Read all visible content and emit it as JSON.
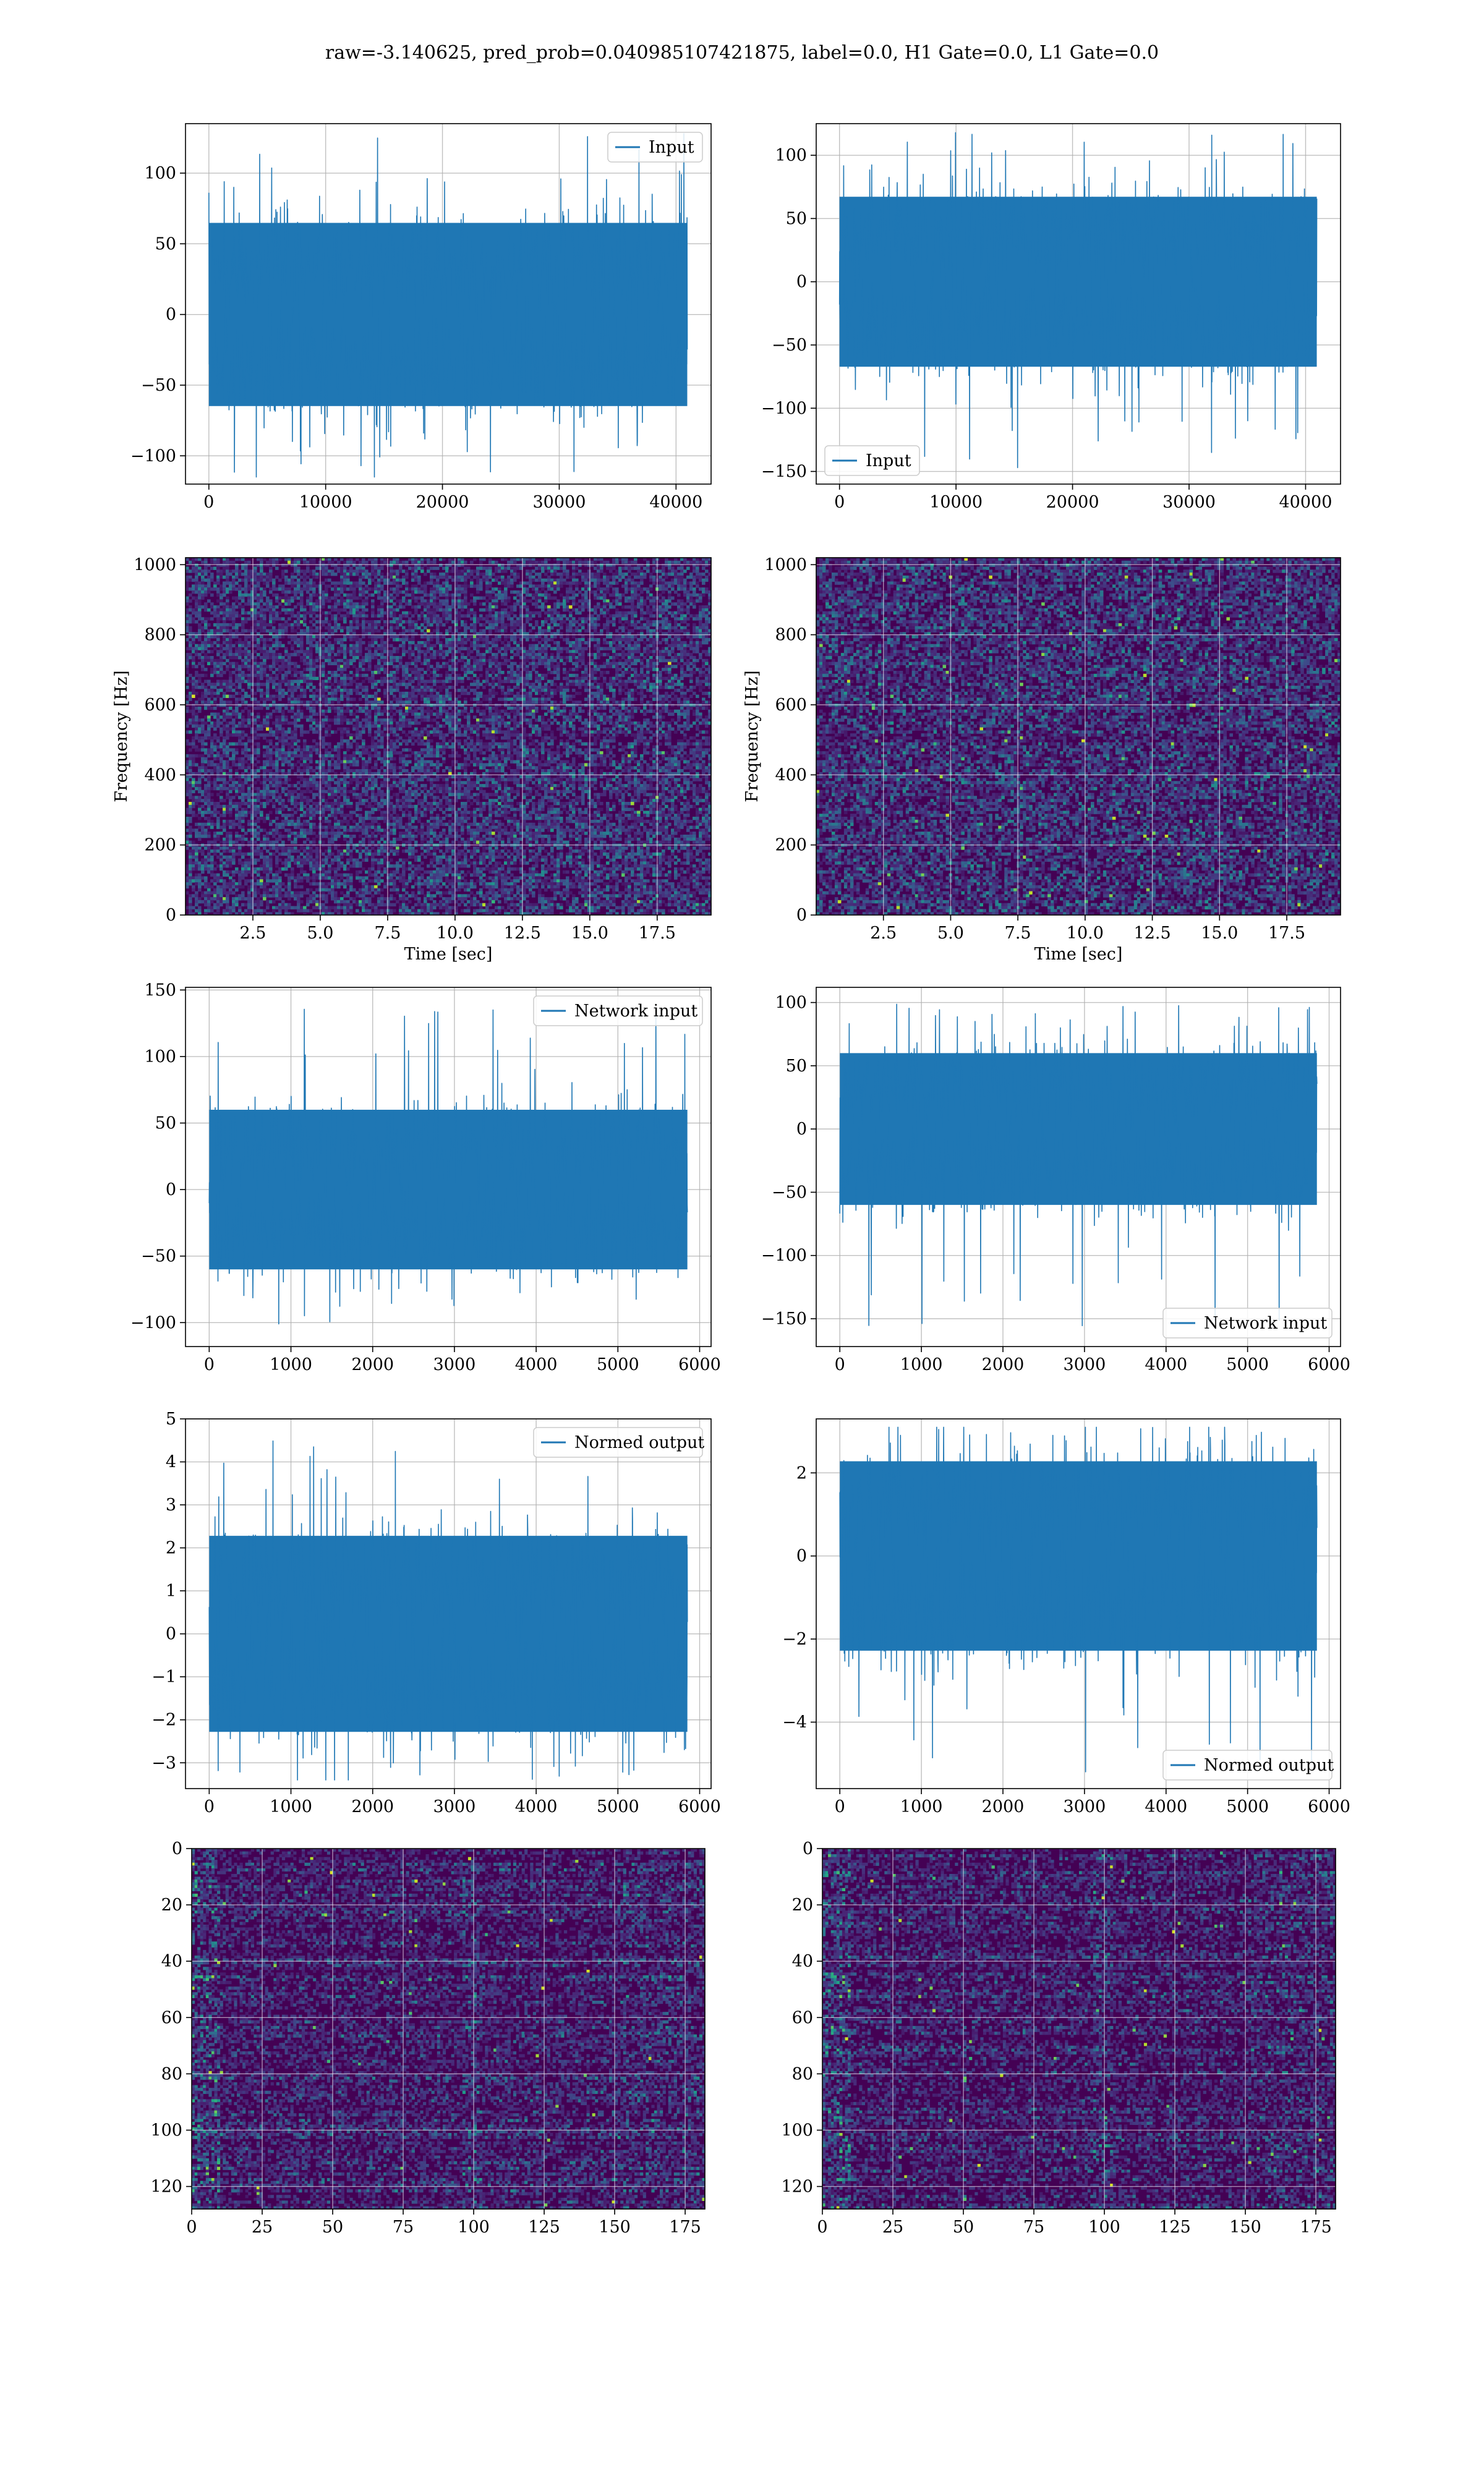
{
  "figure_title": "raw=-3.140625, pred_prob=0.040985107421875, label=0.0, H1 Gate=0.0, L1 Gate=0.0",
  "colors": {
    "line": "#1f77b4",
    "grid": "#b0b0b0",
    "viridis_low": "#440154",
    "viridis_high": "#fde725"
  },
  "chart_data": [
    {
      "id": "p11",
      "type": "line",
      "title": "",
      "xlabel": "",
      "ylabel": "",
      "xlim": [
        -2000,
        43000
      ],
      "ylim": [
        -120,
        135
      ],
      "xticks": [
        0,
        10000,
        20000,
        30000,
        40000
      ],
      "yticks": [
        -100,
        -50,
        0,
        50,
        100
      ],
      "xtick_labels": [
        "0",
        "10000",
        "20000",
        "30000",
        "40000"
      ],
      "ytick_labels": [
        "−100",
        "−50",
        "0",
        "50",
        "100"
      ],
      "legend": "Input",
      "legend_position": "upper right",
      "grid": true,
      "signal": {
        "x_range": [
          0,
          40960
        ],
        "std": 27,
        "min": -115,
        "max": 128
      }
    },
    {
      "id": "p12",
      "type": "line",
      "title": "",
      "xlabel": "",
      "ylabel": "",
      "xlim": [
        -2000,
        43000
      ],
      "ylim": [
        -160,
        125
      ],
      "xticks": [
        0,
        10000,
        20000,
        30000,
        40000
      ],
      "yticks": [
        -150,
        -100,
        -50,
        0,
        50,
        100
      ],
      "xtick_labels": [
        "0",
        "10000",
        "20000",
        "30000",
        "40000"
      ],
      "ytick_labels": [
        "−150",
        "−100",
        "−50",
        "0",
        "50",
        "100"
      ],
      "legend": "Input",
      "legend_position": "lower left",
      "grid": true,
      "signal": {
        "x_range": [
          0,
          40960
        ],
        "std": 28,
        "min": -150,
        "max": 122
      }
    },
    {
      "id": "p21",
      "type": "heatmap",
      "title": "",
      "xlabel": "Time [sec]",
      "ylabel": "Frequency [Hz]",
      "xlim": [
        0,
        19.5
      ],
      "ylim": [
        0,
        1020
      ],
      "xticks": [
        2.5,
        5.0,
        7.5,
        10.0,
        12.5,
        15.0,
        17.5
      ],
      "yticks": [
        0,
        200,
        400,
        600,
        800,
        1000
      ],
      "xtick_labels": [
        "2.5",
        "5.0",
        "7.5",
        "10.0",
        "12.5",
        "15.0",
        "17.5"
      ],
      "ytick_labels": [
        "0",
        "200",
        "400",
        "600",
        "800",
        "1000"
      ],
      "colormap": "viridis",
      "grid": true
    },
    {
      "id": "p22",
      "type": "heatmap",
      "title": "",
      "xlabel": "Time [sec]",
      "ylabel": "Frequency [Hz]",
      "xlim": [
        0,
        19.5
      ],
      "ylim": [
        0,
        1020
      ],
      "xticks": [
        2.5,
        5.0,
        7.5,
        10.0,
        12.5,
        15.0,
        17.5
      ],
      "yticks": [
        0,
        200,
        400,
        600,
        800,
        1000
      ],
      "xtick_labels": [
        "2.5",
        "5.0",
        "7.5",
        "10.0",
        "12.5",
        "15.0",
        "17.5"
      ],
      "ytick_labels": [
        "0",
        "200",
        "400",
        "600",
        "800",
        "1000"
      ],
      "colormap": "viridis",
      "grid": true
    },
    {
      "id": "p31",
      "type": "line",
      "title": "",
      "xlabel": "",
      "ylabel": "",
      "xlim": [
        -290,
        6140
      ],
      "ylim": [
        -118,
        152
      ],
      "xticks": [
        0,
        1000,
        2000,
        3000,
        4000,
        5000,
        6000
      ],
      "yticks": [
        -100,
        -50,
        0,
        50,
        100,
        150
      ],
      "xtick_labels": [
        "0",
        "1000",
        "2000",
        "3000",
        "4000",
        "5000",
        "6000"
      ],
      "ytick_labels": [
        "−100",
        "−50",
        "0",
        "50",
        "100",
        "150"
      ],
      "legend": "Network input",
      "legend_position": "upper right",
      "grid": true,
      "signal": {
        "x_range": [
          0,
          5850
        ],
        "std": 25,
        "min": -105,
        "max": 140
      }
    },
    {
      "id": "p32",
      "type": "line",
      "title": "",
      "xlabel": "",
      "ylabel": "",
      "xlim": [
        -290,
        6140
      ],
      "ylim": [
        -172,
        112
      ],
      "xticks": [
        0,
        1000,
        2000,
        3000,
        4000,
        5000,
        6000
      ],
      "yticks": [
        -150,
        -100,
        -50,
        0,
        50,
        100
      ],
      "xtick_labels": [
        "0",
        "1000",
        "2000",
        "3000",
        "4000",
        "5000",
        "6000"
      ],
      "ytick_labels": [
        "−150",
        "−100",
        "−50",
        "0",
        "50",
        "100"
      ],
      "legend": "Network input",
      "legend_position": "lower right",
      "grid": true,
      "signal": {
        "x_range": [
          0,
          5850
        ],
        "std": 25,
        "min": -158,
        "max": 103
      }
    },
    {
      "id": "p41",
      "type": "line",
      "title": "",
      "xlabel": "",
      "ylabel": "",
      "xlim": [
        -290,
        6140
      ],
      "ylim": [
        -3.6,
        5.0
      ],
      "xticks": [
        0,
        1000,
        2000,
        3000,
        4000,
        5000,
        6000
      ],
      "yticks": [
        -3,
        -2,
        -1,
        0,
        1,
        2,
        3,
        4,
        5
      ],
      "xtick_labels": [
        "0",
        "1000",
        "2000",
        "3000",
        "4000",
        "5000",
        "6000"
      ],
      "ytick_labels": [
        "−3",
        "−2",
        "−1",
        "0",
        "1",
        "2",
        "3",
        "4",
        "5"
      ],
      "legend": "Normed output",
      "legend_position": "upper right",
      "grid": true,
      "signal": {
        "x_range": [
          0,
          5850
        ],
        "std": 0.95,
        "min": -3.4,
        "max": 4.6
      }
    },
    {
      "id": "p42",
      "type": "line",
      "title": "",
      "xlabel": "",
      "ylabel": "",
      "xlim": [
        -290,
        6140
      ],
      "ylim": [
        -5.6,
        3.3
      ],
      "xticks": [
        0,
        1000,
        2000,
        3000,
        4000,
        5000,
        6000
      ],
      "yticks": [
        -4,
        -2,
        0,
        2
      ],
      "xtick_labels": [
        "0",
        "1000",
        "2000",
        "3000",
        "4000",
        "5000",
        "6000"
      ],
      "ytick_labels": [
        "−4",
        "−2",
        "0",
        "2"
      ],
      "legend": "Normed output",
      "legend_position": "lower right",
      "grid": true,
      "signal": {
        "x_range": [
          0,
          5850
        ],
        "std": 0.95,
        "min": -5.2,
        "max": 3.1
      }
    },
    {
      "id": "p51",
      "type": "heatmap",
      "title": "",
      "xlabel": "",
      "ylabel": "",
      "xlim": [
        0,
        182
      ],
      "ylim": [
        128,
        0
      ],
      "xticks": [
        0,
        25,
        50,
        75,
        100,
        125,
        150,
        175
      ],
      "yticks": [
        0,
        20,
        40,
        60,
        80,
        100,
        120
      ],
      "xtick_labels": [
        "0",
        "25",
        "50",
        "75",
        "100",
        "125",
        "150",
        "175"
      ],
      "ytick_labels": [
        "0",
        "20",
        "40",
        "60",
        "80",
        "100",
        "120"
      ],
      "colormap": "viridis",
      "grid": true
    },
    {
      "id": "p52",
      "type": "heatmap",
      "title": "",
      "xlabel": "",
      "ylabel": "",
      "xlim": [
        0,
        182
      ],
      "ylim": [
        128,
        0
      ],
      "xticks": [
        0,
        25,
        50,
        75,
        100,
        125,
        150,
        175
      ],
      "yticks": [
        0,
        20,
        40,
        60,
        80,
        100,
        120
      ],
      "xtick_labels": [
        "0",
        "25",
        "50",
        "75",
        "100",
        "125",
        "150",
        "175"
      ],
      "ytick_labels": [
        "0",
        "20",
        "40",
        "60",
        "80",
        "100",
        "120"
      ],
      "colormap": "viridis",
      "grid": true
    }
  ]
}
